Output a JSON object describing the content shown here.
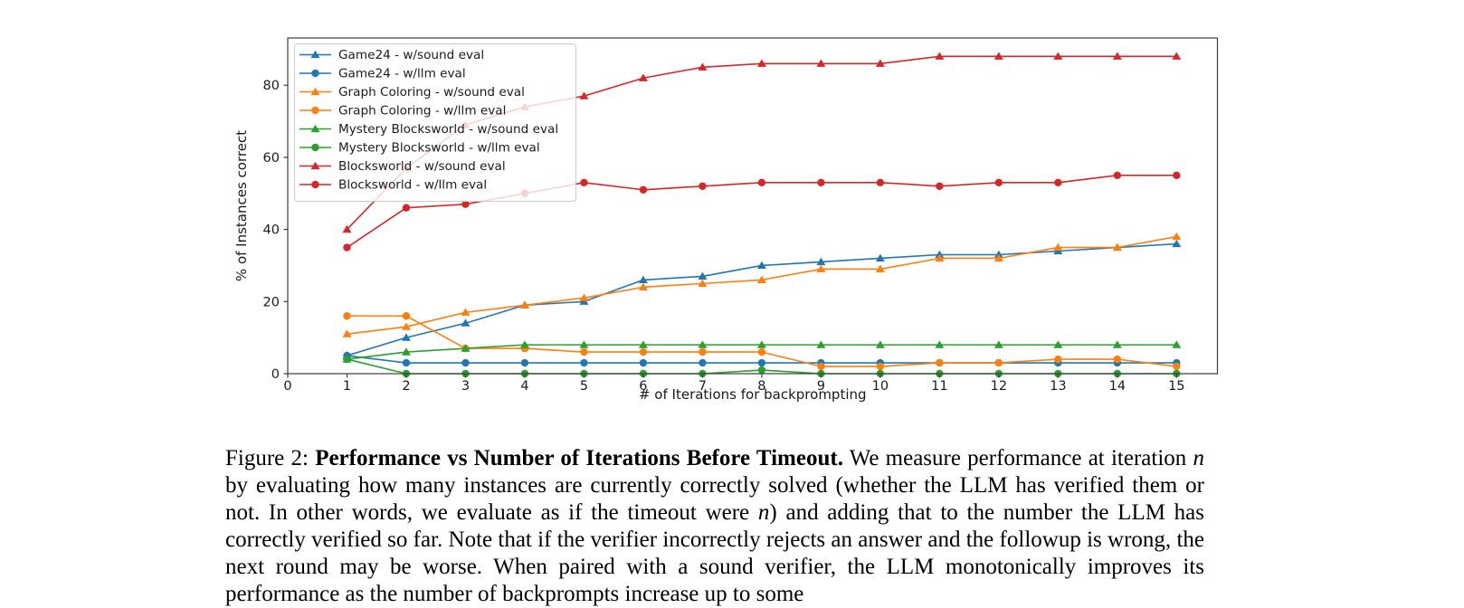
{
  "figure": {
    "caption_segments": [
      {
        "style": "normal",
        "text": "Figure 2: "
      },
      {
        "style": "bold",
        "text": "Performance vs Number of Iterations Before Timeout."
      },
      {
        "style": "normal",
        "text": " We measure performance at iteration "
      },
      {
        "style": "math",
        "text": "n"
      },
      {
        "style": "normal",
        "text": " by evaluating how many instances are currently correctly solved (whether the LLM has verified them or not. In other words, we evaluate as if the timeout were "
      },
      {
        "style": "math",
        "text": "n"
      },
      {
        "style": "normal",
        "text": ") and adding that to the number the LLM has correctly verified so far. Note that if the verifier incorrectly rejects an answer and the followup is wrong, the next round may be worse. When paired with a sound verifier, the LLM monotonically improves its performance as the number of backprompts increase up to some"
      }
    ]
  },
  "chart_data": {
    "type": "line",
    "title": "",
    "xlabel": "# of Iterations for backprompting",
    "ylabel": "% of Instances correct",
    "x": [
      1,
      2,
      3,
      4,
      5,
      6,
      7,
      8,
      9,
      10,
      11,
      12,
      13,
      14,
      15
    ],
    "x_ticks": [
      0,
      1,
      2,
      3,
      4,
      5,
      6,
      7,
      8,
      9,
      10,
      11,
      12,
      13,
      14,
      15
    ],
    "y_ticks": [
      0,
      20,
      40,
      60,
      80
    ],
    "xlim": [
      0,
      15.69
    ],
    "ylim": [
      0,
      93.1
    ],
    "grid": false,
    "legend_position": "upper left",
    "series": [
      {
        "name": "Game24 - w/sound eval",
        "color": "#1f77b4",
        "marker": "triangle",
        "values": [
          5,
          10,
          14,
          19,
          20,
          26,
          27,
          30,
          31,
          32,
          33,
          33,
          34,
          35,
          36
        ]
      },
      {
        "name": "Game24 - w/llm eval",
        "color": "#1f77b4",
        "marker": "circle",
        "values": [
          5,
          3,
          3,
          3,
          3,
          3,
          3,
          3,
          3,
          3,
          3,
          3,
          3,
          3,
          3
        ]
      },
      {
        "name": "Graph Coloring - w/sound eval",
        "color": "#ff7f0e",
        "marker": "triangle",
        "values": [
          11,
          13,
          17,
          19,
          21,
          24,
          25,
          26,
          29,
          29,
          32,
          32,
          35,
          35,
          38
        ]
      },
      {
        "name": "Graph Coloring - w/llm eval",
        "color": "#ff7f0e",
        "marker": "circle",
        "values": [
          16,
          16,
          7,
          7,
          6,
          6,
          6,
          6,
          2,
          2,
          3,
          3,
          4,
          4,
          2
        ]
      },
      {
        "name": "Mystery Blocksworld - w/sound eval",
        "color": "#2ca02c",
        "marker": "triangle",
        "values": [
          4,
          6,
          7,
          8,
          8,
          8,
          8,
          8,
          8,
          8,
          8,
          8,
          8,
          8,
          8
        ]
      },
      {
        "name": "Mystery Blocksworld - w/llm eval",
        "color": "#2ca02c",
        "marker": "circle",
        "values": [
          4,
          0,
          0,
          0,
          0,
          0,
          0,
          1,
          0,
          0,
          0,
          0,
          0,
          0,
          0
        ]
      },
      {
        "name": "Blocksworld - w/sound eval",
        "color": "#d62728",
        "marker": "triangle",
        "values": [
          40,
          57,
          69,
          74,
          77,
          82,
          85,
          86,
          86,
          86,
          88,
          88,
          88,
          88,
          88
        ]
      },
      {
        "name": "Blocksworld - w/llm eval",
        "color": "#d62728",
        "marker": "circle",
        "values": [
          35,
          46,
          47,
          50,
          53,
          51,
          52,
          53,
          53,
          53,
          52,
          53,
          53,
          55,
          55
        ]
      }
    ]
  }
}
